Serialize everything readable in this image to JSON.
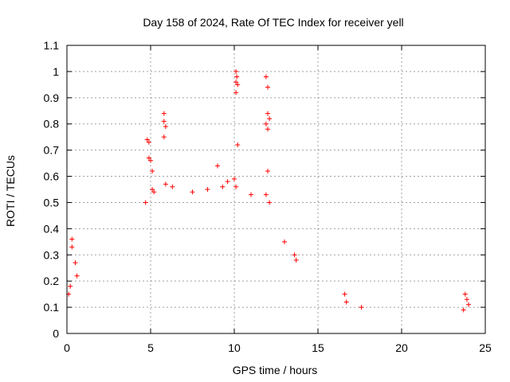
{
  "chart_data": {
    "type": "scatter",
    "title": "Day 158 of 2024, Rate Of TEC Index for receiver yell",
    "xlabel": "GPS time / hours",
    "ylabel": "ROTI / TECUs",
    "xlim": [
      0,
      25
    ],
    "ylim": [
      0,
      1.1
    ],
    "grid": true,
    "x_ticks": [
      0,
      5,
      10,
      15,
      20,
      25
    ],
    "y_ticks": [
      0,
      0.1,
      0.2,
      0.3,
      0.4,
      0.5,
      0.6,
      0.7,
      0.8,
      0.9,
      1,
      1.1
    ],
    "x_tick_labels": [
      "0",
      "5",
      "10",
      "15",
      "20",
      "25"
    ],
    "y_tick_labels": [
      "0",
      "0.1",
      "0.2",
      "0.3",
      "0.4",
      "0.5",
      "0.6",
      "0.7",
      "0.8",
      "0.9",
      "1",
      "1.1"
    ],
    "series": [
      {
        "name": "ROTI",
        "marker": "plus",
        "color": "#ff0000",
        "points": [
          [
            0.3,
            0.36
          ],
          [
            0.3,
            0.33
          ],
          [
            0.5,
            0.27
          ],
          [
            0.6,
            0.22
          ],
          [
            0.2,
            0.18
          ],
          [
            0.1,
            0.15
          ],
          [
            4.8,
            0.74
          ],
          [
            4.9,
            0.73
          ],
          [
            4.9,
            0.67
          ],
          [
            5.0,
            0.66
          ],
          [
            5.1,
            0.62
          ],
          [
            5.1,
            0.55
          ],
          [
            5.2,
            0.54
          ],
          [
            4.7,
            0.5
          ],
          [
            5.8,
            0.84
          ],
          [
            5.8,
            0.81
          ],
          [
            5.9,
            0.79
          ],
          [
            5.8,
            0.75
          ],
          [
            5.9,
            0.57
          ],
          [
            6.3,
            0.56
          ],
          [
            7.5,
            0.54
          ],
          [
            8.4,
            0.55
          ],
          [
            9.0,
            0.64
          ],
          [
            9.3,
            0.56
          ],
          [
            9.6,
            0.58
          ],
          [
            10.0,
            0.59
          ],
          [
            10.1,
            0.56
          ],
          [
            10.1,
            1.0
          ],
          [
            10.15,
            0.98
          ],
          [
            10.1,
            0.96
          ],
          [
            10.2,
            0.95
          ],
          [
            10.1,
            0.92
          ],
          [
            10.2,
            0.72
          ],
          [
            11.9,
            0.98
          ],
          [
            12.0,
            0.94
          ],
          [
            12.0,
            0.84
          ],
          [
            12.1,
            0.82
          ],
          [
            11.9,
            0.8
          ],
          [
            12.0,
            0.78
          ],
          [
            12.0,
            0.62
          ],
          [
            11.9,
            0.53
          ],
          [
            12.1,
            0.5
          ],
          [
            11.0,
            0.53
          ],
          [
            13.6,
            0.3
          ],
          [
            13.7,
            0.28
          ],
          [
            13.0,
            0.35
          ],
          [
            16.6,
            0.15
          ],
          [
            16.7,
            0.12
          ],
          [
            17.6,
            0.1
          ],
          [
            23.8,
            0.15
          ],
          [
            23.9,
            0.13
          ],
          [
            24.0,
            0.11
          ],
          [
            23.7,
            0.09
          ]
        ]
      }
    ]
  }
}
